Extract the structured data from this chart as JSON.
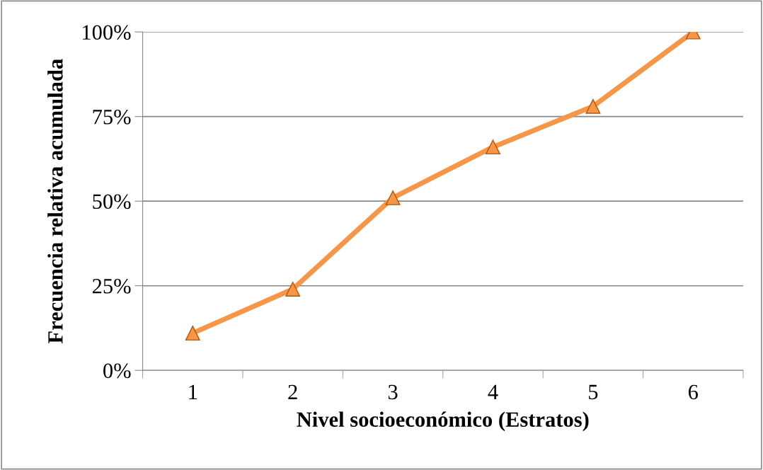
{
  "chart_data": {
    "type": "line",
    "xlabel": "Nivel socioeconómico (Estratos)",
    "ylabel": "Frecuencia relativa acumulada",
    "categories": [
      "1",
      "2",
      "3",
      "4",
      "5",
      "6"
    ],
    "series": [
      {
        "color": "#f79646",
        "values": [
          0.11,
          0.24,
          0.51,
          0.66,
          0.78,
          1.0
        ]
      }
    ],
    "ylim": [
      0,
      1
    ],
    "yticks": [
      {
        "value": 0,
        "label": "0%"
      },
      {
        "value": 0.25,
        "label": "25%"
      },
      {
        "value": 0.5,
        "label": "50%"
      },
      {
        "value": 0.75,
        "label": "75%"
      },
      {
        "value": 1,
        "label": "100%"
      }
    ],
    "grid": "y",
    "marker": "triangle",
    "line_style": "solid"
  }
}
